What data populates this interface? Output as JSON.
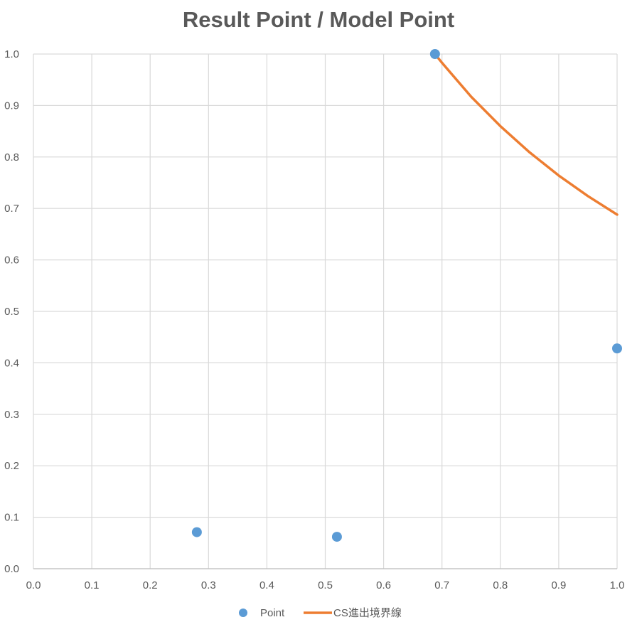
{
  "chart_data": {
    "type": "scatter",
    "title": "Result Point / Model Point",
    "xlabel": "",
    "ylabel": "",
    "xlim": [
      0,
      1
    ],
    "ylim": [
      0,
      1
    ],
    "x_ticks": [
      "0.0",
      "0.1",
      "0.2",
      "0.3",
      "0.4",
      "0.5",
      "0.6",
      "0.7",
      "0.8",
      "0.9",
      "1.0"
    ],
    "y_ticks": [
      "0.0",
      "0.1",
      "0.2",
      "0.3",
      "0.4",
      "0.5",
      "0.6",
      "0.7",
      "0.8",
      "0.9",
      "1.0"
    ],
    "grid": true,
    "legend": "bottom",
    "series": [
      {
        "name": "Point",
        "kind": "scatter",
        "color": "#5b9bd5",
        "points": [
          {
            "x": 0.28,
            "y": 0.071
          },
          {
            "x": 0.52,
            "y": 0.062
          },
          {
            "x": 0.688,
            "y": 1.0
          },
          {
            "x": 1.0,
            "y": 0.428
          }
        ]
      },
      {
        "name": "CS進出境界線",
        "kind": "line",
        "color": "#ed7d31",
        "points": [
          {
            "x": 0.688,
            "y": 1.0
          },
          {
            "x": 0.7,
            "y": 0.983
          },
          {
            "x": 0.75,
            "y": 0.917
          },
          {
            "x": 0.8,
            "y": 0.86
          },
          {
            "x": 0.85,
            "y": 0.809
          },
          {
            "x": 0.9,
            "y": 0.764
          },
          {
            "x": 0.95,
            "y": 0.724
          },
          {
            "x": 1.0,
            "y": 0.688
          }
        ]
      }
    ]
  }
}
